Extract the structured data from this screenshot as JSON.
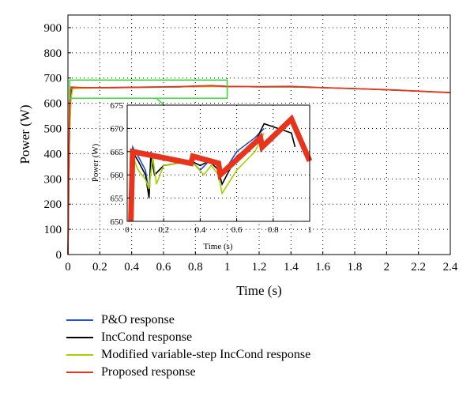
{
  "chart_data": {
    "main": {
      "type": "line",
      "xlabel": "Time (s)",
      "ylabel": "Power (W)",
      "xlim": [
        0,
        2.4
      ],
      "ylim": [
        0,
        950
      ],
      "xticks": [
        "0",
        "0.2",
        "0.4",
        "0.6",
        "0.8",
        "1",
        "1.2",
        "1.4",
        "1.6",
        "1.8",
        "2",
        "2.2",
        "2.4"
      ],
      "yticks": [
        "0",
        "100",
        "200",
        "300",
        "400",
        "500",
        "600",
        "700",
        "800",
        "900"
      ],
      "grid": "dotted",
      "series": [
        {
          "name": "P&O response",
          "color": "#1f4fd8",
          "x": [
            0,
            0.01,
            0.02,
            0.03,
            0.1,
            0.3,
            0.5,
            0.7,
            0.9,
            1.0,
            1.2,
            1.4,
            1.6,
            1.8,
            2.0,
            2.2,
            2.4
          ],
          "y": [
            0,
            500,
            640,
            662,
            662,
            663,
            664,
            665,
            668,
            666,
            665,
            665,
            662,
            658,
            653,
            648,
            642
          ]
        },
        {
          "name": "IncCond response",
          "color": "#000000",
          "x": [
            0,
            0.01,
            0.02,
            0.03,
            0.1,
            0.3,
            0.5,
            0.7,
            0.9,
            1.0,
            1.2,
            1.4,
            1.6,
            1.8,
            2.0,
            2.2,
            2.4
          ],
          "y": [
            0,
            480,
            630,
            660,
            661,
            662,
            664,
            665,
            667,
            666,
            665,
            665,
            662,
            658,
            653,
            648,
            642
          ]
        },
        {
          "name": "Modified variable-step IncCond response",
          "color": "#a8d000",
          "x": [
            0,
            0.01,
            0.02,
            0.03,
            0.1,
            0.3,
            0.5,
            0.7,
            0.9,
            1.0,
            1.2,
            1.4,
            1.6,
            1.8,
            2.0,
            2.2,
            2.4
          ],
          "y": [
            0,
            470,
            620,
            658,
            660,
            662,
            663,
            665,
            667,
            666,
            665,
            665,
            662,
            658,
            653,
            648,
            642
          ]
        },
        {
          "name": "Proposed response",
          "color": "#e8341c",
          "x": [
            0,
            0.005,
            0.01,
            0.02,
            0.1,
            0.3,
            0.5,
            0.7,
            0.9,
            1.0,
            1.2,
            1.4,
            1.6,
            1.8,
            2.0,
            2.2,
            2.4
          ],
          "y": [
            0,
            300,
            600,
            664,
            662,
            662,
            664,
            666,
            670,
            667,
            666,
            667,
            662,
            658,
            654,
            648,
            642
          ]
        }
      ]
    },
    "inset": {
      "type": "line",
      "xlabel": "Time (s)",
      "ylabel": "Power (W)",
      "xlim": [
        0,
        1
      ],
      "ylim": [
        650,
        675
      ],
      "xticks": [
        "0",
        "0.2",
        "0.4",
        "0.6",
        "0.8",
        "1"
      ],
      "yticks": [
        "650",
        "655",
        "660",
        "665",
        "670",
        "675"
      ],
      "grid": "dotted",
      "series": [
        {
          "name": "P&O response",
          "color": "#1f4fd8",
          "x": [
            0.02,
            0.03,
            0.06,
            0.1,
            0.12,
            0.13,
            0.15,
            0.2,
            0.35,
            0.4,
            0.45,
            0.5,
            0.52,
            0.6,
            0.7,
            0.75
          ],
          "y": [
            651,
            666,
            664,
            661,
            656,
            665,
            660,
            662,
            663,
            661,
            663,
            662,
            660,
            665,
            668,
            670
          ]
        },
        {
          "name": "IncCond response",
          "color": "#000000",
          "x": [
            0.02,
            0.03,
            0.06,
            0.1,
            0.12,
            0.13,
            0.15,
            0.2,
            0.35,
            0.4,
            0.45,
            0.5,
            0.52,
            0.6,
            0.7,
            0.75,
            0.9,
            0.92
          ],
          "y": [
            650,
            665,
            663,
            660,
            655,
            664,
            660,
            662,
            663,
            662,
            663,
            661,
            658,
            664,
            667,
            671,
            669,
            666
          ]
        },
        {
          "name": "Modified variable-step IncCond response",
          "color": "#a8d000",
          "x": [
            0.02,
            0.03,
            0.06,
            0.1,
            0.12,
            0.14,
            0.16,
            0.2,
            0.35,
            0.42,
            0.46,
            0.5,
            0.52,
            0.6,
            0.7,
            0.75
          ],
          "y": [
            650,
            664,
            661,
            659,
            657,
            664,
            658,
            662,
            663,
            660,
            662,
            660,
            656,
            661,
            665,
            669
          ]
        },
        {
          "name": "Proposed response",
          "color": "#e8341c",
          "x": [
            0.02,
            0.03,
            0.35,
            0.36,
            0.5,
            0.51,
            0.73,
            0.74,
            0.9,
            1.0
          ],
          "y": [
            650,
            665,
            662.5,
            664,
            662.5,
            660,
            668,
            666,
            672,
            663
          ]
        }
      ]
    }
  },
  "legend": [
    {
      "label": "P&O response",
      "color": "#1f4fd8"
    },
    {
      "label": "IncCond response",
      "color": "#000000"
    },
    {
      "label": "Modified variable-step IncCond response",
      "color": "#a8d000"
    },
    {
      "label": "Proposed response",
      "color": "#e8341c"
    }
  ],
  "zoom_box_color": "#33dd33"
}
